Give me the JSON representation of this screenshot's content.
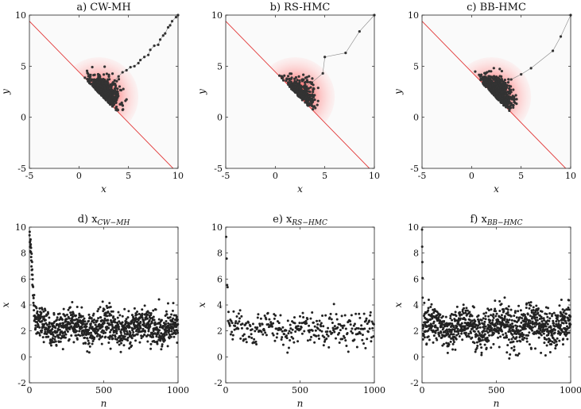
{
  "chart_data": [
    {
      "id": "a",
      "type": "scatter",
      "title": "a) CW-MH",
      "xlabel": "x",
      "ylabel": "y",
      "xlim": [
        -5,
        10
      ],
      "ylim": [
        -5,
        10
      ],
      "xticks": [
        -5,
        0,
        5,
        10
      ],
      "yticks": [
        -5,
        0,
        5,
        10
      ],
      "background_shading": "red radial density, centered near (2, 2), truncated by the constraint line",
      "constraint_line": {
        "x": [
          -5,
          9.5
        ],
        "y": [
          9.4,
          -5
        ]
      },
      "trace": {
        "x": [
          10,
          9.8,
          9.4,
          9.2,
          9.0,
          8.7,
          8.5,
          8.2,
          8.0,
          7.6,
          7.2,
          7.0,
          6.6,
          6.2,
          6.0,
          5.6,
          5.2,
          4.8,
          4.4,
          4.0,
          3.6,
          3.2,
          3.0
        ],
        "y": [
          10,
          9.8,
          9.4,
          9.0,
          8.8,
          8.2,
          8.0,
          7.6,
          7.1,
          7.0,
          6.6,
          6.1,
          5.9,
          5.6,
          5.3,
          5.0,
          4.9,
          4.6,
          4.4,
          4.0,
          3.6,
          3.2,
          3.0
        ]
      },
      "cluster": {
        "center": [
          2.4,
          2.6
        ],
        "spread": [
          0.85,
          0.85
        ],
        "n": 520,
        "seed": 11
      },
      "colors": {
        "points": "#333333",
        "line": "#e23b3b",
        "density": "#ff2a2a"
      }
    },
    {
      "id": "b",
      "type": "scatter",
      "title": "b) RS-HMC",
      "xlabel": "x",
      "ylabel": "y",
      "xlim": [
        -5,
        10
      ],
      "ylim": [
        -5,
        10
      ],
      "xticks": [
        -5,
        0,
        5,
        10
      ],
      "yticks": [
        -5,
        0,
        5,
        10
      ],
      "background_shading": "red radial density, centered near (2, 2), truncated by the constraint line",
      "constraint_line": {
        "x": [
          -5,
          9.5
        ],
        "y": [
          9.4,
          -5
        ]
      },
      "trace": {
        "x": [
          10,
          8.5,
          7.1,
          5.0,
          4.8,
          3.7,
          3.0
        ],
        "y": [
          10,
          8.4,
          6.3,
          5.9,
          4.3,
          3.4,
          3.0
        ]
      },
      "cluster": {
        "center": [
          2.3,
          2.6
        ],
        "spread": [
          0.8,
          0.8
        ],
        "n": 320,
        "seed": 23
      },
      "colors": {
        "points": "#333333",
        "line": "#e23b3b",
        "density": "#ff2a2a"
      }
    },
    {
      "id": "c",
      "type": "scatter",
      "title": "c) BB-HMC",
      "xlabel": "x",
      "ylabel": "y",
      "xlim": [
        -5,
        10
      ],
      "ylim": [
        -5,
        10
      ],
      "xticks": [
        -5,
        0,
        5,
        10
      ],
      "yticks": [
        -5,
        0,
        5,
        10
      ],
      "background_shading": "red radial density, centered near (2, 2), truncated by the constraint line",
      "constraint_line": {
        "x": [
          -5,
          9.5
        ],
        "y": [
          9.4,
          -5
        ]
      },
      "trace": {
        "x": [
          10,
          9.0,
          8.2,
          6.0,
          5.0,
          4.0,
          3.2
        ],
        "y": [
          10,
          7.9,
          6.5,
          4.8,
          4.2,
          3.7,
          3.1
        ]
      },
      "cluster": {
        "center": [
          2.4,
          2.6
        ],
        "spread": [
          0.85,
          0.85
        ],
        "n": 620,
        "seed": 37
      },
      "colors": {
        "points": "#333333",
        "line": "#e23b3b",
        "density": "#ff2a2a"
      }
    },
    {
      "id": "d",
      "type": "scatter",
      "title": "d) x",
      "title_subscript": "CW−MH",
      "xlabel": "n",
      "ylabel": "x",
      "xlim": [
        0,
        1000
      ],
      "ylim": [
        -2,
        10
      ],
      "xticks": [
        0,
        500,
        1000
      ],
      "yticks": [
        -2,
        0,
        2,
        4,
        6,
        8,
        10
      ],
      "series": {
        "n": 1000,
        "start": 10,
        "decay_steps": 40,
        "mean": 2.3,
        "sd": 0.65,
        "seed": 51
      },
      "colors": {
        "points": "#222222"
      }
    },
    {
      "id": "e",
      "type": "scatter",
      "title": "e) x",
      "title_subscript": "RS−HMC",
      "xlabel": "n",
      "ylabel": "x",
      "xlim": [
        0,
        1000
      ],
      "ylim": [
        -2,
        10
      ],
      "xticks": [
        0,
        500,
        1000
      ],
      "yticks": [
        -2,
        0,
        2,
        4,
        6,
        8,
        10
      ],
      "series": {
        "n": 320,
        "start": 10,
        "decay_steps": 6,
        "mean": 2.2,
        "sd": 0.65,
        "seed": 61
      },
      "colors": {
        "points": "#222222"
      }
    },
    {
      "id": "f",
      "type": "scatter",
      "title": "f) x",
      "title_subscript": "BB−HMC",
      "xlabel": "n",
      "ylabel": "x",
      "xlim": [
        0,
        1000
      ],
      "ylim": [
        -2,
        10
      ],
      "xticks": [
        0,
        500,
        1000
      ],
      "yticks": [
        -2,
        0,
        2,
        4,
        6,
        8,
        10
      ],
      "series": {
        "n": 1000,
        "start": 10,
        "decay_steps": 6,
        "mean": 2.3,
        "sd": 0.75,
        "seed": 71
      },
      "colors": {
        "points": "#222222"
      }
    }
  ]
}
